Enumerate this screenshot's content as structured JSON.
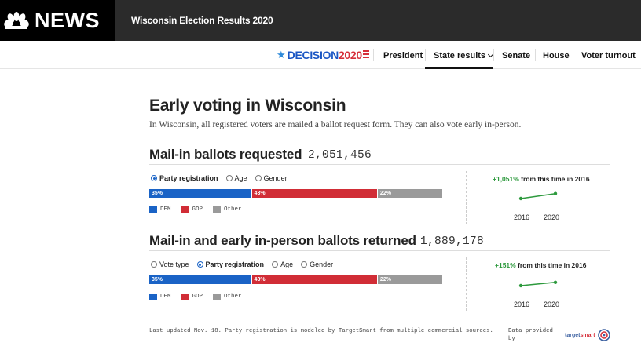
{
  "header": {
    "logo_text": "NEWS",
    "page_title": "Wisconsin Election Results 2020"
  },
  "nav": {
    "decision_part1": "DECISION",
    "decision_part2": "2020",
    "items": [
      {
        "label": "President"
      },
      {
        "label": "State results"
      },
      {
        "label": "Senate"
      },
      {
        "label": "House"
      },
      {
        "label": "Voter turnout"
      }
    ],
    "active": "State results"
  },
  "main": {
    "title": "Early voting in Wisconsin",
    "intro": "In Wisconsin, all registered voters are mailed a ballot request form. They can also vote early in-person."
  },
  "sections": [
    {
      "title": "Mail-in ballots requested",
      "total": "2,051,456",
      "radios": [
        {
          "label": "Party registration",
          "selected": true
        },
        {
          "label": "Age",
          "selected": false
        },
        {
          "label": "Gender",
          "selected": false
        }
      ],
      "bar": [
        {
          "party": "DEM",
          "pct": 35,
          "label": "35%",
          "color": "#1a63c6"
        },
        {
          "party": "GOP",
          "pct": 43,
          "label": "43%",
          "color": "#d12d36"
        },
        {
          "party": "Other",
          "pct": 22,
          "label": "22%",
          "color": "#9a9a9a"
        }
      ],
      "legend": [
        "DEM",
        "GOP",
        "Other"
      ],
      "trend": {
        "pct": "+1,051%",
        "text": " from this time in 2016",
        "years": [
          "2016",
          "2020"
        ],
        "change_fraction": 0.45
      }
    },
    {
      "title": "Mail-in and early in-person ballots returned",
      "total": "1,889,178",
      "radios": [
        {
          "label": "Vote type",
          "selected": false
        },
        {
          "label": "Party registration",
          "selected": true
        },
        {
          "label": "Age",
          "selected": false
        },
        {
          "label": "Gender",
          "selected": false
        }
      ],
      "bar": [
        {
          "party": "DEM",
          "pct": 35,
          "label": "35%",
          "color": "#1a63c6"
        },
        {
          "party": "GOP",
          "pct": 43,
          "label": "43%",
          "color": "#d12d36"
        },
        {
          "party": "Other",
          "pct": 22,
          "label": "22%",
          "color": "#9a9a9a"
        }
      ],
      "legend": [
        "DEM",
        "GOP",
        "Other"
      ],
      "trend": {
        "pct": "+151%",
        "text": " from this time in 2016",
        "years": [
          "2016",
          "2020"
        ],
        "change_fraction": 0.3
      }
    }
  ],
  "footer": {
    "note": "Last updated Nov. 18. Party registration is modeled by TargetSmart from multiple commercial sources.",
    "provided_by": "Data provided by",
    "partner_part1": "target",
    "partner_part2": "smart"
  },
  "colors": {
    "accent_green": "#2e9a3e",
    "dem": "#1a63c6",
    "gop": "#d12d36",
    "other": "#9a9a9a"
  }
}
